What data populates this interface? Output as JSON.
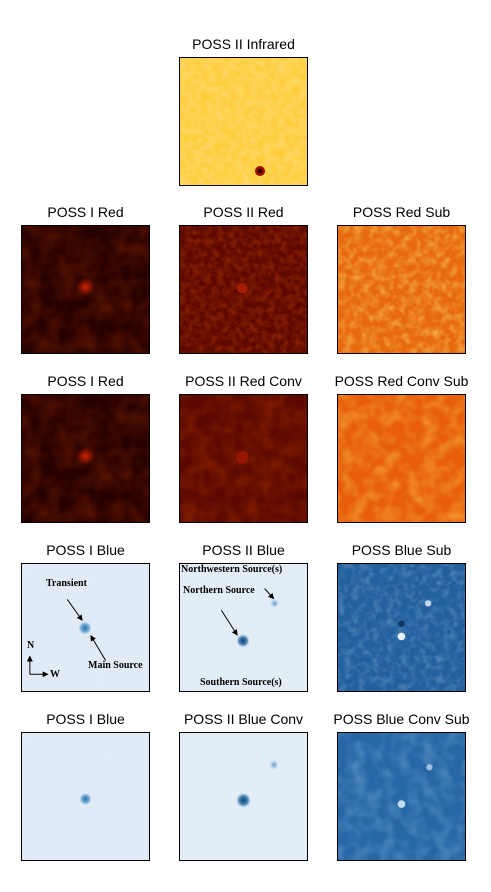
{
  "panels": {
    "infrared": {
      "title": "POSS II Infrared"
    },
    "red1": {
      "title": "POSS I Red"
    },
    "red2": {
      "title": "POSS II Red"
    },
    "redsub": {
      "title": "POSS Red Sub"
    },
    "red1b": {
      "title": "POSS I Red"
    },
    "red2conv": {
      "title": "POSS II Red Conv"
    },
    "redconvsub": {
      "title": "POSS Red Conv Sub"
    },
    "blue1": {
      "title": "POSS I Blue"
    },
    "blue2": {
      "title": "POSS II Blue"
    },
    "bluesub": {
      "title": "POSS Blue Sub"
    },
    "blue1b": {
      "title": "POSS I Blue"
    },
    "blue2conv": {
      "title": "POSS II Blue Conv"
    },
    "blueconvsub": {
      "title": "POSS Blue Conv Sub"
    }
  },
  "annotations": {
    "transient": "Transient",
    "main_source": "Main Source",
    "north": "N",
    "west": "W",
    "northwestern_sources": "Northwestern Source(s)",
    "northern_source": "Northern Source",
    "southern_sources": "Southern Source(s)"
  },
  "colors": {
    "yellow_bg": "#ffd633",
    "dark_red_bg": "#2a0000",
    "red_bg": "#6e0a00",
    "orange_bg": "#f07d10",
    "light_blue_bg": "#dde9f6",
    "dark_blue_bg": "#2b6bab"
  }
}
